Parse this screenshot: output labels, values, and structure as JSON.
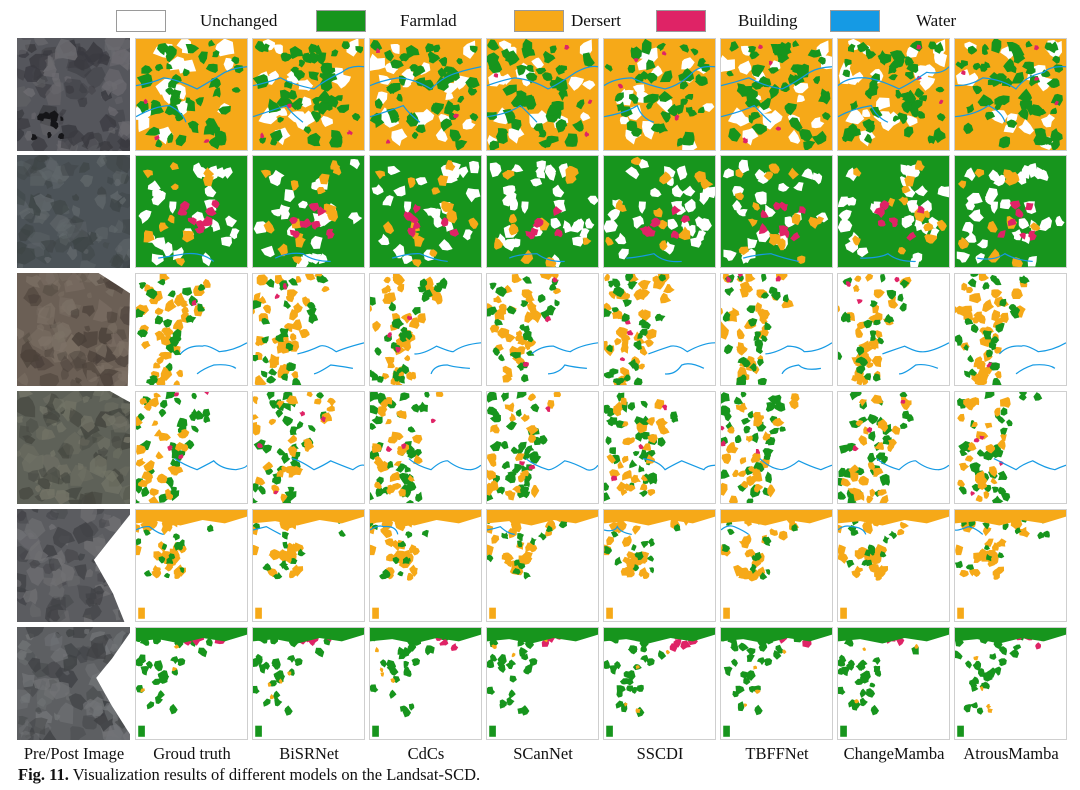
{
  "legend": [
    {
      "key": "unchanged",
      "label": "Unchanged",
      "color": "#ffffff"
    },
    {
      "key": "farmland",
      "label": "Farmlad",
      "color": "#17951d"
    },
    {
      "key": "desert",
      "label": "Dersert",
      "color": "#f6a918"
    },
    {
      "key": "building",
      "label": "Building",
      "color": "#df2366"
    },
    {
      "key": "water",
      "label": "Water",
      "color": "#159ae4"
    }
  ],
  "columns": [
    "Pre/Post Image",
    "Groud truth",
    "BiSRNet",
    "CdCs",
    "SCanNet",
    "SSCDI",
    "TBFFNet",
    "ChangeMamba",
    "AtrousMamba"
  ],
  "caption": {
    "label": "Fig. 11.",
    "text": " Visualization results of different models on the Landsat-SCD."
  }
}
